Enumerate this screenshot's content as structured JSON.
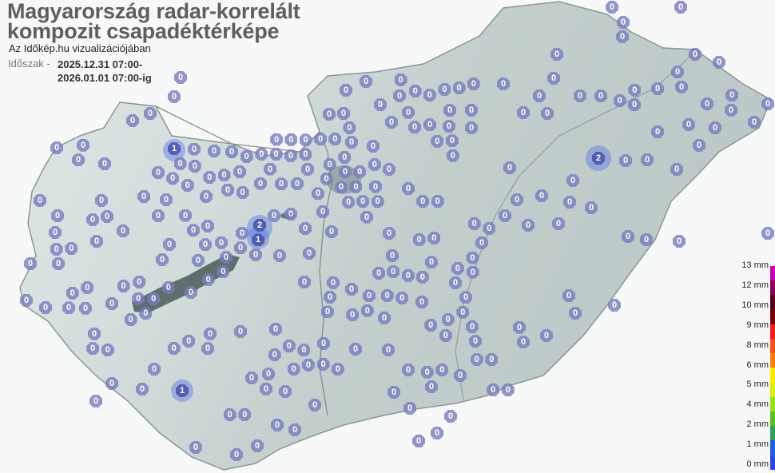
{
  "header": {
    "title_line1": "Magyarország radar-korrelált",
    "title_line2": "kompozit csapadéktérképe",
    "subtitle": "Az Időkép.hu vizualizációjában",
    "period_label": "Időszak -",
    "period_start": "2025.12.31 07:00-",
    "period_end": "2026.01.01 07:00-ig"
  },
  "legend": {
    "labels": [
      "13 mm",
      "12 mm",
      "10 mm",
      "9 mm",
      "8 mm",
      "6 mm",
      "5 mm",
      "4 mm",
      "2 mm",
      "1 mm",
      "0 mm"
    ],
    "colors": [
      "#c400b8",
      "#8c0060",
      "#5c0020",
      "#780000",
      "#ff1a1a",
      "#ff5018",
      "#ff8010",
      "#ffec00",
      "#dcf010",
      "#96e020",
      "#5cc020",
      "#30a058",
      "#2060e0",
      "#2848e0"
    ]
  },
  "colors": {
    "marker": "#787cbe",
    "map_fill": "#c8d4d3",
    "lake": "#5f6e6c",
    "precip": "#5a78e6"
  },
  "stations": {
    "values": [
      0,
      0,
      0,
      0,
      0,
      0,
      0,
      0,
      0,
      0,
      1,
      0,
      0,
      0,
      0,
      0,
      0,
      0,
      0,
      0,
      0,
      0,
      0,
      0,
      0,
      0,
      0,
      0,
      0,
      0,
      0,
      0,
      0,
      0,
      0,
      0,
      0,
      0,
      0,
      0,
      0,
      0,
      0,
      0,
      0,
      0,
      0,
      0,
      0,
      0,
      0,
      0,
      0,
      0,
      0,
      0,
      0,
      0,
      0,
      0,
      2,
      1,
      0,
      0,
      0,
      0,
      0,
      0,
      0,
      0,
      0,
      0,
      0,
      0,
      0,
      0,
      0,
      0,
      0,
      0,
      0,
      0,
      0,
      0,
      0,
      0,
      0,
      0,
      0,
      0,
      0,
      0,
      0,
      0,
      0,
      0,
      0,
      0,
      0,
      0,
      0,
      0,
      0,
      0,
      0,
      0,
      0,
      0,
      0,
      0,
      1,
      0,
      0,
      0,
      0,
      0,
      0,
      0,
      0,
      0,
      0,
      0,
      0,
      0,
      0,
      0,
      0,
      0,
      0,
      0,
      0,
      0,
      0,
      0,
      0,
      0,
      0,
      0,
      0,
      0,
      0,
      0,
      0,
      0,
      0,
      0,
      0,
      0,
      0,
      0,
      0,
      0,
      0,
      0,
      0,
      0,
      0,
      0,
      0,
      0,
      0,
      0,
      0,
      0,
      0,
      0,
      0,
      0,
      0,
      0,
      0,
      0,
      0,
      0,
      0,
      0,
      0,
      0,
      0,
      0,
      0,
      0,
      0,
      0,
      0,
      0,
      0,
      0,
      0,
      0,
      0,
      0,
      0,
      0,
      0,
      2,
      0,
      0,
      0,
      0,
      0,
      0,
      0,
      0,
      0,
      0,
      0,
      0,
      0,
      0,
      0,
      0,
      0,
      0,
      0,
      0,
      0,
      0,
      0,
      0,
      0,
      0,
      0,
      0,
      0,
      0,
      0,
      0,
      0,
      0,
      0,
      0,
      0,
      0,
      0,
      0,
      0,
      0,
      0,
      0,
      0,
      0,
      0,
      0,
      0,
      0,
      0,
      0,
      0,
      0,
      0,
      0,
      0,
      0,
      0,
      0,
      0
    ]
  }
}
